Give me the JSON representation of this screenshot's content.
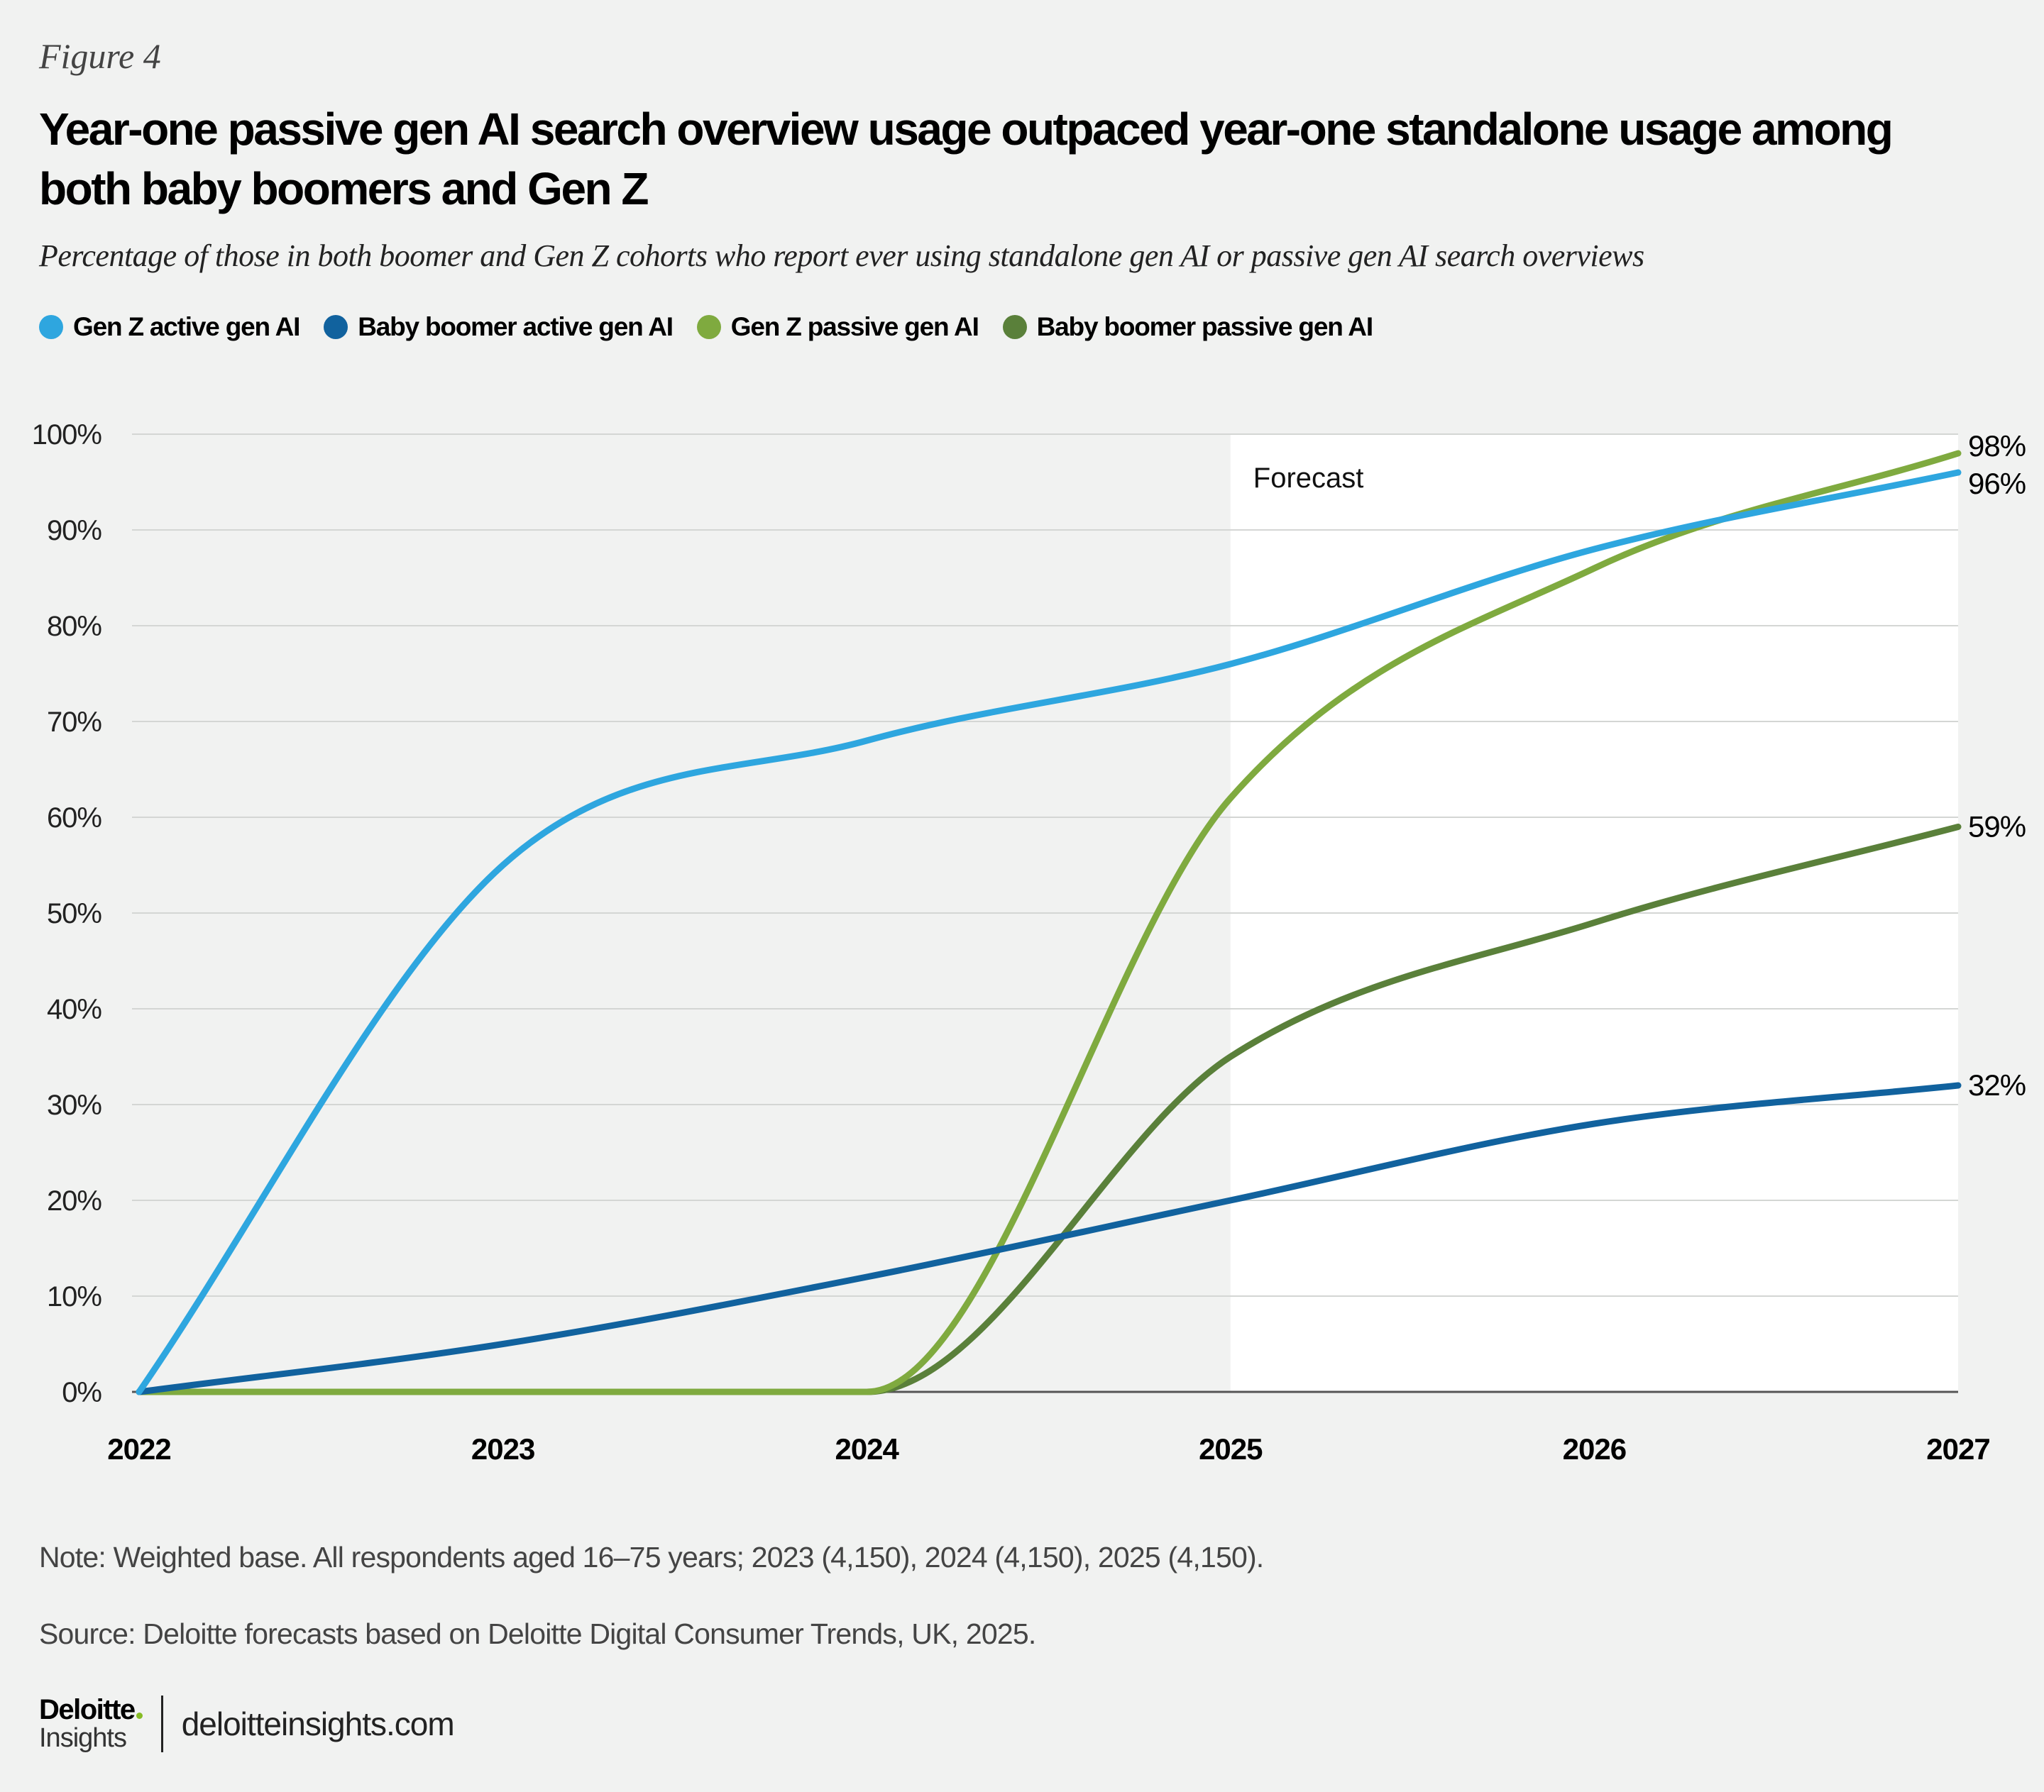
{
  "figure_label": "Figure 4",
  "title": "Year-one passive gen AI search overview usage outpaced year-one standalone usage among both baby boomers and Gen Z",
  "subtitle": "Percentage of those in both boomer and Gen Z cohorts who report ever using standalone gen AI or passive gen AI search overviews",
  "note": "Note: Weighted base. All respondents aged 16–75 years; 2023 (4,150), 2024 (4,150), 2025 (4,150).",
  "source": "Source: Deloitte forecasts based on Deloitte Digital Consumer Trends, UK, 2025.",
  "footer": {
    "brand": "Deloitte",
    "brand_sub": "Insights",
    "url": "deloitteinsights.com"
  },
  "chart_data": {
    "type": "line",
    "x": [
      2022,
      2023,
      2024,
      2025,
      2026,
      2027
    ],
    "x_tick_labels": [
      "2022",
      "2023",
      "2024",
      "2025",
      "2026",
      "2027"
    ],
    "y_tick_labels": [
      "0%",
      "10%",
      "20%",
      "30%",
      "40%",
      "50%",
      "60%",
      "70%",
      "80%",
      "90%",
      "100%"
    ],
    "ylim": [
      0,
      100
    ],
    "grid": true,
    "legend_placement": "top-left",
    "annotation": "Forecast",
    "forecast_range": [
      2025,
      2027
    ],
    "series": [
      {
        "name": "Gen Z active gen AI",
        "color": "#2ea6df",
        "values": [
          0,
          55,
          68,
          76,
          88,
          96
        ],
        "end_label": "96%"
      },
      {
        "name": "Baby boomer active gen AI",
        "color": "#11629e",
        "values": [
          0,
          5,
          12,
          20,
          28,
          32
        ],
        "end_label": "32%"
      },
      {
        "name": "Gen Z passive gen AI",
        "color": "#7faa3f",
        "values": [
          0,
          0,
          0,
          62,
          86,
          98
        ],
        "end_label": "98%"
      },
      {
        "name": "Baby boomer passive gen AI",
        "color": "#5a803a",
        "values": [
          0,
          0,
          0,
          35,
          49,
          59
        ],
        "end_label": "59%"
      }
    ]
  }
}
